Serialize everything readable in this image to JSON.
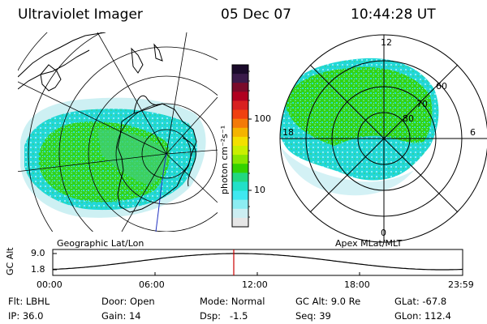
{
  "header": {
    "instrument": "Ultraviolet Imager",
    "date": "05 Dec 07",
    "time": "10:44:28 UT"
  },
  "colorbar": {
    "unit_label": "photon cm⁻²s⁻¹",
    "ticks": [
      "100",
      "10"
    ],
    "scale": "log",
    "colors_top_to_bottom": [
      "#1a0a2a",
      "#3a1a4a",
      "#7a0a2a",
      "#b00020",
      "#d82020",
      "#f04010",
      "#f47a08",
      "#f5b400",
      "#f3e000",
      "#c9ef00",
      "#88e600",
      "#33d200",
      "#22d880",
      "#22e0c8",
      "#40e8f0",
      "#8cecf2",
      "#cceef2",
      "#e6e6e6"
    ]
  },
  "geo_panel": {
    "label": "Geographic Lat/Lon"
  },
  "apex_panel": {
    "label": "Apex MLat/MLT",
    "mlt_labels": {
      "top": "12",
      "left": "18",
      "right": "6",
      "bottom": "0"
    },
    "mlat_labels": [
      "60",
      "70",
      "80"
    ]
  },
  "altitude_plot": {
    "ylabel": "GC Alt",
    "ytick_top": "9.0",
    "ytick_bottom": "1.8",
    "xticks": [
      "00:00",
      "06:00",
      "12:00",
      "18:00",
      "23:59"
    ],
    "current_marker_color": "#cc0000"
  },
  "info": {
    "flt": "Flt: LBHL",
    "ip": "IP: 36.0",
    "door": "Door: Open",
    "gain": "Gain: 14",
    "mode": "Mode: Normal",
    "dsp": "Dsp:   -1.5",
    "gcalt": "GC Alt: 9.0 Re",
    "seq": "Seq: 39",
    "glat": "GLat: -67.8",
    "glon": "GLon: 112.4"
  }
}
